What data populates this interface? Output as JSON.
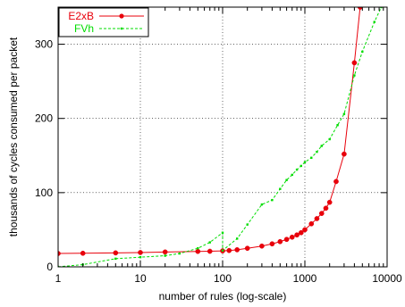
{
  "chart_data": {
    "type": "line",
    "xlabel": "number of rules (log-scale)",
    "ylabel": "thousands of cycles consumed per packet",
    "xscale": "log",
    "xlim": [
      1,
      10000
    ],
    "ylim": [
      0,
      350
    ],
    "grid": true,
    "legend_position": "top-left",
    "x_ticks": [
      {
        "value": 1,
        "label": "1"
      },
      {
        "value": 10,
        "label": "10"
      },
      {
        "value": 100,
        "label": "100"
      },
      {
        "value": 1000,
        "label": "1000"
      },
      {
        "value": 10000,
        "label": "10000"
      }
    ],
    "y_ticks": [
      {
        "value": 0,
        "label": "0"
      },
      {
        "value": 100,
        "label": "100"
      },
      {
        "value": 200,
        "label": "200"
      },
      {
        "value": 300,
        "label": "300"
      }
    ],
    "series": [
      {
        "name": "E2xB",
        "color": "#e8000b",
        "style": "solid",
        "marker": "circle",
        "points": [
          [
            1,
            18
          ],
          [
            2,
            18.3
          ],
          [
            5,
            18.8
          ],
          [
            10,
            19.3
          ],
          [
            20,
            20
          ],
          [
            50,
            20.8
          ],
          [
            70,
            21
          ],
          [
            100,
            21.5
          ],
          [
            120,
            22
          ],
          [
            150,
            23
          ],
          [
            200,
            25
          ],
          [
            300,
            28
          ],
          [
            400,
            31
          ],
          [
            500,
            34
          ],
          [
            600,
            37
          ],
          [
            700,
            40
          ],
          [
            800,
            43
          ],
          [
            900,
            46
          ],
          [
            1000,
            50
          ],
          [
            1200,
            58
          ],
          [
            1400,
            65
          ],
          [
            1600,
            72
          ],
          [
            1800,
            79
          ],
          [
            2000,
            87
          ],
          [
            2400,
            115
          ],
          [
            3000,
            152
          ],
          [
            4000,
            275
          ],
          [
            4700,
            350
          ]
        ]
      },
      {
        "name": "FVh",
        "color": "#00dd00",
        "style": "dashed",
        "marker": "dot",
        "points": [
          [
            1,
            0
          ],
          [
            2,
            3
          ],
          [
            5,
            11
          ],
          [
            10,
            13
          ],
          [
            20,
            15
          ],
          [
            30,
            18
          ],
          [
            50,
            25
          ],
          [
            70,
            33
          ],
          [
            100,
            46
          ],
          [
            100,
            22
          ],
          [
            150,
            38
          ],
          [
            200,
            57
          ],
          [
            300,
            84
          ],
          [
            400,
            90
          ],
          [
            500,
            105
          ],
          [
            600,
            117
          ],
          [
            700,
            124
          ],
          [
            800,
            131
          ],
          [
            900,
            136
          ],
          [
            1000,
            141
          ],
          [
            1200,
            147
          ],
          [
            1400,
            155
          ],
          [
            1600,
            163
          ],
          [
            2000,
            172
          ],
          [
            2500,
            191
          ],
          [
            3000,
            206
          ],
          [
            4000,
            258
          ],
          [
            5000,
            290
          ],
          [
            7000,
            330
          ],
          [
            8500,
            350
          ]
        ]
      }
    ]
  }
}
